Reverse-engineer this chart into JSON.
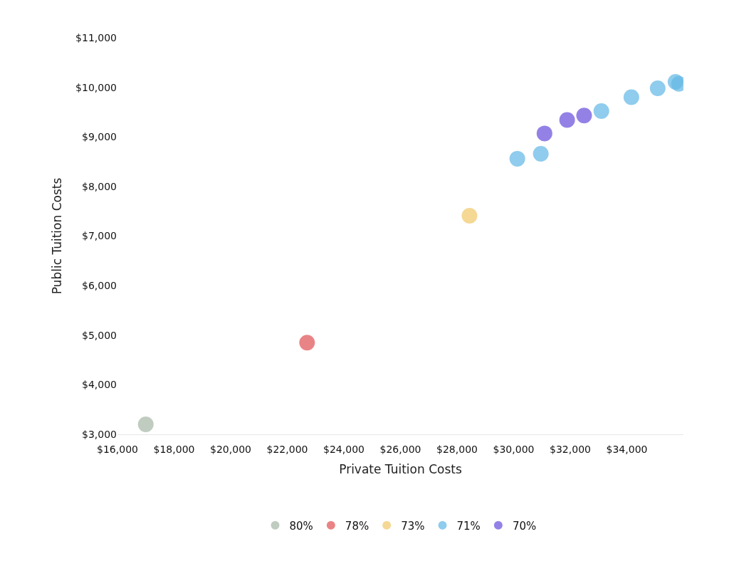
{
  "chart_data": {
    "type": "scatter",
    "xlabel": "Private Tuition Costs",
    "ylabel": "Public Tuition Costs",
    "series": [
      {
        "name": "80%",
        "color": "#a9b8a9",
        "x": [
          17000
        ],
        "values": [
          3200
        ]
      },
      {
        "name": "78%",
        "color": "#e05558",
        "x": [
          22700
        ],
        "values": [
          4850
        ]
      },
      {
        "name": "73%",
        "color": "#f0c96b",
        "x": [
          28440
        ],
        "values": [
          7410
        ]
      },
      {
        "name": "71%",
        "color": "#64b8e6",
        "x": [
          30130,
          30960,
          33100,
          34160,
          35090,
          35720,
          35840
        ],
        "values": [
          8560,
          8660,
          9520,
          9800,
          9980,
          10110,
          10070
        ]
      },
      {
        "name": "70%",
        "color": "#6b51dc",
        "x": [
          31090,
          31890,
          32490
        ],
        "values": [
          9070,
          9340,
          9430
        ]
      }
    ],
    "xlim": [
      16000,
      36000
    ],
    "ylim": [
      3000,
      11000
    ],
    "xticks": [
      {
        "value": 16000,
        "label": "$16,000"
      },
      {
        "value": 18000,
        "label": "$18,000"
      },
      {
        "value": 20000,
        "label": "$20,000"
      },
      {
        "value": 22000,
        "label": "$22,000"
      },
      {
        "value": 24000,
        "label": "$24,000"
      },
      {
        "value": 26000,
        "label": "$26,000"
      },
      {
        "value": 28000,
        "label": "$28,000"
      },
      {
        "value": 30000,
        "label": "$30,000"
      },
      {
        "value": 32000,
        "label": "$32,000"
      },
      {
        "value": 34000,
        "label": "$34,000"
      }
    ],
    "yticks": [
      {
        "value": 3000,
        "label": "$3,000"
      },
      {
        "value": 4000,
        "label": "$4,000"
      },
      {
        "value": 5000,
        "label": "$5,000"
      },
      {
        "value": 6000,
        "label": "$6,000"
      },
      {
        "value": 7000,
        "label": "$7,000"
      },
      {
        "value": 8000,
        "label": "$8,000"
      },
      {
        "value": 9000,
        "label": "$9,000"
      },
      {
        "value": 10000,
        "label": "$10,000"
      },
      {
        "value": 11000,
        "label": "$11,000"
      }
    ],
    "legend": "bottom",
    "marker": "circle"
  }
}
